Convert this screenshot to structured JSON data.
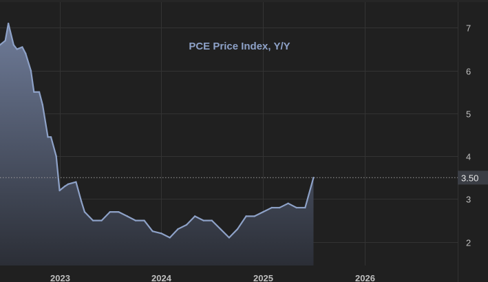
{
  "chart_data": {
    "type": "area",
    "title": "PCE Price Index, Y/Y",
    "xlabel": "",
    "ylabel": "",
    "x_start": "2022-06",
    "x_end": "2026-12",
    "x_ticks": [
      {
        "date": "2023-01",
        "label": "2023"
      },
      {
        "date": "2024-01",
        "label": "2024"
      },
      {
        "date": "2025-01",
        "label": "2025"
      },
      {
        "date": "2026-01",
        "label": "2026"
      }
    ],
    "y_ticks": [
      2,
      3,
      4,
      5,
      6,
      7
    ],
    "ylim": [
      1.45,
      7.6
    ],
    "grid": true,
    "last_value_label": "3.50",
    "series": [
      {
        "values": [
          {
            "date": "2022-06",
            "value": 6.6
          },
          {
            "date": "2022-06-20",
            "value": 6.7
          },
          {
            "date": "2022-07",
            "value": 7.1
          },
          {
            "date": "2022-07-20",
            "value": 6.6
          },
          {
            "date": "2022-08",
            "value": 6.5
          },
          {
            "date": "2022-08-20",
            "value": 6.55
          },
          {
            "date": "2022-09",
            "value": 6.4
          },
          {
            "date": "2022-09-20",
            "value": 6.0
          },
          {
            "date": "2022-10",
            "value": 5.5
          },
          {
            "date": "2022-10-20",
            "value": 5.5
          },
          {
            "date": "2022-11",
            "value": 5.2
          },
          {
            "date": "2022-11-20",
            "value": 4.45
          },
          {
            "date": "2022-12",
            "value": 4.45
          },
          {
            "date": "2022-12-20",
            "value": 4.0
          },
          {
            "date": "2023-01",
            "value": 3.2
          },
          {
            "date": "2023-01-20",
            "value": 3.3
          },
          {
            "date": "2023-02",
            "value": 3.35
          },
          {
            "date": "2023-03",
            "value": 3.4
          },
          {
            "date": "2023-03-20",
            "value": 2.95
          },
          {
            "date": "2023-04",
            "value": 2.7
          },
          {
            "date": "2023-05",
            "value": 2.5
          },
          {
            "date": "2023-06",
            "value": 2.5
          },
          {
            "date": "2023-07",
            "value": 2.7
          },
          {
            "date": "2023-08",
            "value": 2.7
          },
          {
            "date": "2023-09",
            "value": 2.6
          },
          {
            "date": "2023-10",
            "value": 2.5
          },
          {
            "date": "2023-11",
            "value": 2.5
          },
          {
            "date": "2023-12",
            "value": 2.25
          },
          {
            "date": "2024-01",
            "value": 2.2
          },
          {
            "date": "2024-02",
            "value": 2.1
          },
          {
            "date": "2024-03",
            "value": 2.3
          },
          {
            "date": "2024-04",
            "value": 2.4
          },
          {
            "date": "2024-05",
            "value": 2.6
          },
          {
            "date": "2024-06",
            "value": 2.5
          },
          {
            "date": "2024-07",
            "value": 2.5
          },
          {
            "date": "2024-08",
            "value": 2.3
          },
          {
            "date": "2024-09",
            "value": 2.1
          },
          {
            "date": "2024-10",
            "value": 2.3
          },
          {
            "date": "2024-11",
            "value": 2.6
          },
          {
            "date": "2024-12",
            "value": 2.6
          },
          {
            "date": "2025-01",
            "value": 2.7
          },
          {
            "date": "2025-02",
            "value": 2.8
          },
          {
            "date": "2025-03",
            "value": 2.8
          },
          {
            "date": "2025-04",
            "value": 2.9
          },
          {
            "date": "2025-05",
            "value": 2.8
          },
          {
            "date": "2025-06",
            "value": 2.8
          },
          {
            "date": "2025-07",
            "value": 3.5
          }
        ]
      }
    ]
  },
  "colors": {
    "line": "#8ea2c8",
    "area_top": "#6f7c99",
    "area_bottom": "#2b2e36",
    "grid": "#333333",
    "background": "#202020",
    "last_value_bg": "#3a3d44",
    "last_value_line": "#a0a0a0"
  }
}
